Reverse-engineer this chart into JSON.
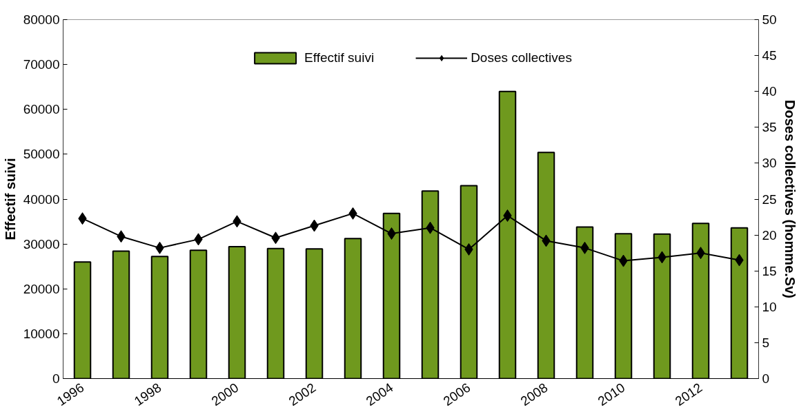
{
  "chart_data": {
    "type": "bar",
    "categories": [
      "1996",
      null,
      "1998",
      null,
      "2000",
      null,
      "2002",
      null,
      "2004",
      null,
      "2006",
      null,
      "2008",
      null,
      "2010",
      null,
      "2012",
      null
    ],
    "series": [
      {
        "name": "Effectif suivi",
        "color": "#6f991e",
        "values": [
          26000,
          28400,
          27200,
          28600,
          29400,
          29000,
          28900,
          31200,
          36800,
          41800,
          43000,
          64000,
          50400,
          33800,
          32300,
          32200,
          34600,
          33600
        ]
      },
      {
        "name": "Doses collectives",
        "type": "line",
        "axis": "y2",
        "color": "#000000",
        "marker": "diamond",
        "values": [
          22.3,
          19.8,
          18.2,
          19.4,
          21.9,
          19.6,
          21.3,
          23.0,
          20.2,
          21.0,
          18.0,
          22.7,
          19.2,
          18.2,
          16.4,
          16.9,
          17.5,
          16.5
        ]
      }
    ],
    "ylabel": "Effectif suivi",
    "y2label": "Doses collectives (homme.Sv)",
    "ylim": [
      0,
      80000
    ],
    "yticks": [
      0,
      10000,
      20000,
      30000,
      40000,
      50000,
      60000,
      70000,
      80000
    ],
    "y2lim": [
      0,
      50
    ],
    "y2ticks": [
      0,
      5,
      10,
      15,
      20,
      25,
      30,
      35,
      40,
      45,
      50
    ],
    "grid": false,
    "legend": "top"
  }
}
